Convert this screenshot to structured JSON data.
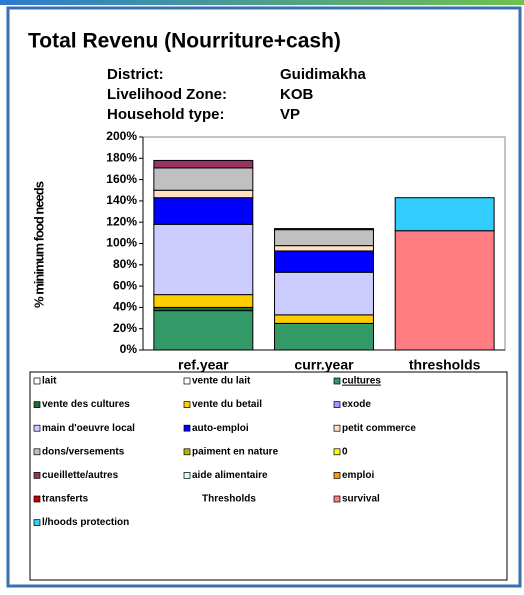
{
  "chart_data": {
    "type": "stacked_bar",
    "title": "Total Revenu (Nourriture+cash)",
    "info": [
      {
        "label": "District:",
        "value": "Guidimakha"
      },
      {
        "label": "Livelihood Zone:",
        "value": "KOB"
      },
      {
        "label": "Household type:",
        "value": "VP"
      }
    ],
    "y_label": "% minimum food needs",
    "categories": [
      "ref.year",
      "curr.year",
      "thresholds"
    ],
    "ylim": [
      0,
      200
    ],
    "yticks": [
      {
        "value": 0,
        "label": "0%"
      },
      {
        "value": 20,
        "label": "20%"
      },
      {
        "value": 40,
        "label": "40%"
      },
      {
        "value": 60,
        "label": "60%"
      },
      {
        "value": 80,
        "label": "80%"
      },
      {
        "value": 100,
        "label": "100%"
      },
      {
        "value": 120,
        "label": "120%"
      },
      {
        "value": 140,
        "label": "140%"
      },
      {
        "value": 160,
        "label": "160%"
      },
      {
        "value": 180,
        "label": "180%"
      },
      {
        "value": 200,
        "label": "200%"
      }
    ],
    "series": [
      {
        "name": "lait",
        "color": "#ffffff",
        "values": [
          0,
          0,
          0
        ]
      },
      {
        "name": "vente du lait",
        "color": "#ffffff",
        "values": [
          0,
          0,
          0
        ]
      },
      {
        "name": "cultures",
        "color": "#339966",
        "values": [
          37,
          25,
          0
        ]
      },
      {
        "name": "vente des cultures",
        "color": "#1f6b3a",
        "values": [
          3,
          0,
          0
        ]
      },
      {
        "name": "vente du betail",
        "color": "#ffcc00",
        "values": [
          12,
          8,
          0
        ]
      },
      {
        "name": "exode",
        "color": "#9999ff",
        "values": [
          0,
          0,
          0
        ]
      },
      {
        "name": "main d'oeuvre local",
        "color": "#ccccff",
        "values": [
          66,
          40,
          0
        ]
      },
      {
        "name": "auto-emploi",
        "color": "#0000ff",
        "values": [
          25,
          20,
          0
        ]
      },
      {
        "name": "petit commerce",
        "color": "#ffe0c0",
        "values": [
          7,
          5,
          0
        ]
      },
      {
        "name": "dons/versements",
        "color": "#c0c0c0",
        "values": [
          21,
          15,
          0
        ]
      },
      {
        "name": "paiment en nature",
        "color": "#b5b500",
        "values": [
          0,
          0,
          0
        ]
      },
      {
        "name": "0",
        "color": "#ffff00",
        "values": [
          0,
          0,
          0
        ]
      },
      {
        "name": "cueillette/autres",
        "color": "#993366",
        "values": [
          7,
          1,
          0
        ]
      },
      {
        "name": "aide alimentaire",
        "color": "#ccffff",
        "values": [
          0,
          0,
          0
        ]
      },
      {
        "name": "emploi",
        "color": "#ff9900",
        "values": [
          0,
          0,
          0
        ]
      },
      {
        "name": "transferts",
        "color": "#cc0000",
        "values": [
          0,
          0,
          0
        ]
      },
      {
        "name": "Thresholds",
        "values": [
          null,
          null,
          null
        ]
      },
      {
        "name": "survival",
        "color": "#ff7c80",
        "values": [
          0,
          0,
          112
        ]
      },
      {
        "name": "l/hoods protection",
        "color": "#33ccff",
        "values": [
          0,
          0,
          31
        ]
      }
    ]
  }
}
